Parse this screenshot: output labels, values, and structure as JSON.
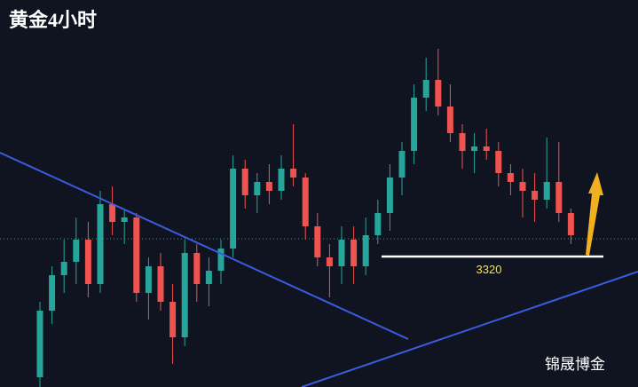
{
  "chart_data": {
    "type": "candlestick",
    "title": "黄金4小时",
    "watermark": "锦晟博金",
    "up_color": "#26a69a",
    "down_color": "#ef5350",
    "ylim": [
      3246.5,
      3464.5
    ],
    "support_level": 3320,
    "current_price": 3330,
    "open": [
      3252,
      3289.5,
      3309.5,
      3317,
      3329.5,
      3304.5,
      3349.5,
      3339.5,
      3342,
      3299.5,
      3314.5,
      3294.5,
      3274.5,
      3322,
      3304.5,
      3312,
      3324.5,
      3369.5,
      3354.5,
      3362,
      3357,
      3369.5,
      3364.5,
      3337,
      3319.5,
      3314.5,
      3329.5,
      3314.5,
      3332,
      3344.5,
      3364.5,
      3379.5,
      3409.5,
      3419.5,
      3404.5,
      3389.5,
      3379.5,
      3382,
      3379.5,
      3367,
      3362,
      3357,
      3352,
      3362,
      3344.5
    ],
    "high": [
      3294.5,
      3314.5,
      3329.5,
      3342,
      3339.5,
      3357,
      3359.5,
      3347,
      3344.5,
      3319.5,
      3322,
      3304.5,
      3329.5,
      3327,
      3319.5,
      3329.5,
      3377,
      3374.5,
      3367,
      3372,
      3377,
      3394.5,
      3367,
      3344.5,
      3327,
      3337,
      3337,
      3342,
      3352,
      3372,
      3384.5,
      3417,
      3432,
      3437,
      3417,
      3394.5,
      3389.5,
      3392,
      3384.5,
      3372,
      3369.5,
      3367,
      3387,
      3384.5,
      3347
    ],
    "low": [
      3246.5,
      3282,
      3299.5,
      3304.5,
      3297,
      3299.5,
      3332,
      3327,
      3294.5,
      3284.5,
      3289.5,
      3259.5,
      3269.5,
      3294.5,
      3292,
      3304.5,
      3319.5,
      3347,
      3344.5,
      3349.5,
      3352,
      3359.5,
      3329.5,
      3314.5,
      3297,
      3304.5,
      3304.5,
      3309.5,
      3327,
      3334.5,
      3354.5,
      3372,
      3402,
      3399.5,
      3384.5,
      3369.5,
      3367,
      3374.5,
      3359.5,
      3354.5,
      3342,
      3339.5,
      3347,
      3339.5,
      3327
    ],
    "close": [
      3289.5,
      3309.5,
      3317,
      3329.5,
      3304.5,
      3349.5,
      3339.5,
      3342,
      3299.5,
      3314.5,
      3294.5,
      3274.5,
      3322,
      3304.5,
      3312,
      3324.5,
      3369.5,
      3354.5,
      3362,
      3357,
      3369.5,
      3364.5,
      3337,
      3319.5,
      3314.5,
      3329.5,
      3314.5,
      3332,
      3344.5,
      3364.5,
      3379.5,
      3409.5,
      3419.5,
      3404.5,
      3389.5,
      3379.5,
      3382,
      3379.5,
      3367,
      3362,
      3357,
      3352,
      3362,
      3344.5,
      3332
    ]
  }
}
